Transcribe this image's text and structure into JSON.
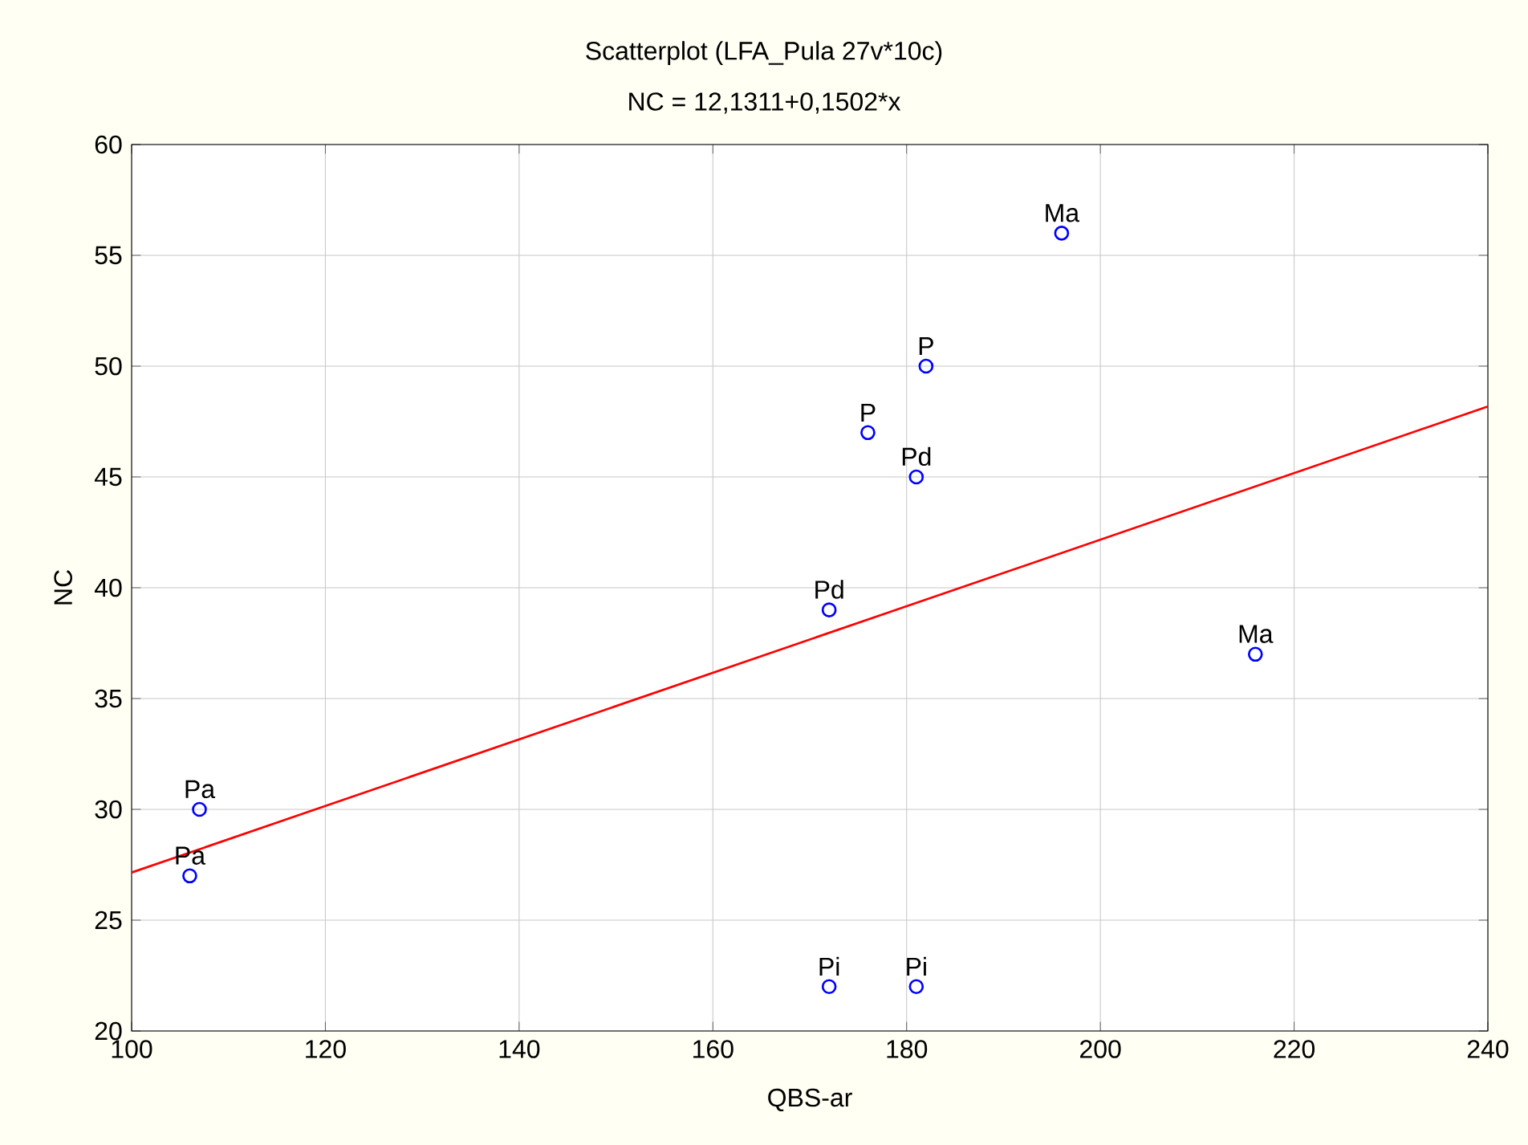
{
  "chart_data": {
    "type": "scatter",
    "title": "Scatterplot (LFA_Pula 27v*10c)",
    "subtitle": "NC = 12,1311+0,1502*x",
    "xlabel": "QBS-ar",
    "ylabel": "NC",
    "series": [
      {
        "color": "#0000ff",
        "x": [
          196,
          182,
          176,
          181,
          172,
          216,
          107,
          106,
          172,
          181
        ],
        "values": [
          56,
          50,
          47,
          45,
          39,
          37,
          30,
          27,
          22,
          22
        ]
      },
      {
        "type": "line",
        "marker": "none",
        "color": "#ff0000",
        "x": [
          100,
          240
        ],
        "values": [
          27.15,
          48.18
        ]
      }
    ],
    "annotations": [
      {
        "text": "Ma",
        "x": 196,
        "y": 56
      },
      {
        "text": "P",
        "x": 182,
        "y": 50
      },
      {
        "text": "P",
        "x": 176,
        "y": 47
      },
      {
        "text": "Pd",
        "x": 181,
        "y": 45
      },
      {
        "text": "Pd",
        "x": 172,
        "y": 39
      },
      {
        "text": "Ma",
        "x": 216,
        "y": 37
      },
      {
        "text": "Pa",
        "x": 107,
        "y": 30
      },
      {
        "text": "Pa",
        "x": 106,
        "y": 27
      },
      {
        "text": "Pi",
        "x": 172,
        "y": 22
      },
      {
        "text": "Pi",
        "x": 181,
        "y": 22
      }
    ],
    "xlim": [
      100,
      240
    ],
    "ylim": [
      20,
      60
    ],
    "xticks": [
      100,
      120,
      140,
      160,
      180,
      200,
      220,
      240
    ],
    "yticks": [
      20,
      25,
      30,
      35,
      40,
      45,
      50,
      55,
      60
    ],
    "grid": true,
    "marker": "circle"
  }
}
